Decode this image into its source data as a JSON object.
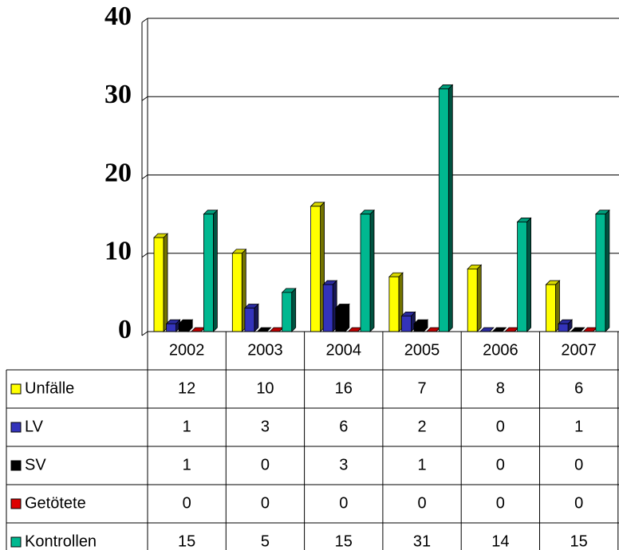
{
  "chart_data": {
    "type": "bar",
    "categories": [
      "2002",
      "2003",
      "2004",
      "2005",
      "2006",
      "2007"
    ],
    "series": [
      {
        "name": "Unfälle",
        "color": "#ffff00",
        "values": [
          12,
          10,
          16,
          7,
          8,
          6
        ]
      },
      {
        "name": "LV",
        "color": "#3333bb",
        "values": [
          1,
          3,
          6,
          2,
          0,
          1
        ]
      },
      {
        "name": "SV",
        "color": "#000000",
        "values": [
          1,
          0,
          3,
          1,
          0,
          0
        ]
      },
      {
        "name": "Getötete",
        "color": "#dd0000",
        "values": [
          0,
          0,
          0,
          0,
          0,
          0
        ]
      },
      {
        "name": "Kontrollen",
        "color": "#00b890",
        "values": [
          15,
          5,
          15,
          31,
          14,
          15
        ]
      }
    ],
    "ylim": [
      0,
      40
    ],
    "yticks": [
      0,
      10,
      20,
      30,
      40
    ],
    "grid": true
  }
}
